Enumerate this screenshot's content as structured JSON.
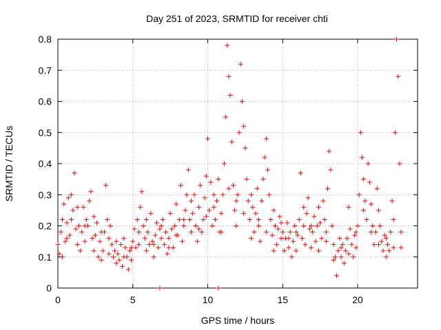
{
  "chart_data": {
    "type": "scatter",
    "title": "Day 251 of 2023, SRMTID for receiver chti",
    "xlabel": "GPS time / hours",
    "ylabel": "SRMTID / TECUs",
    "xlim": [
      0,
      24
    ],
    "ylim": [
      0,
      0.8
    ],
    "grid": true,
    "marker": "+",
    "x_ticks": [
      0,
      5,
      10,
      15,
      20
    ],
    "x_tick_labels": [
      "0",
      "5",
      "10",
      "15",
      "20"
    ],
    "y_ticks": [
      0,
      0.1,
      0.2,
      0.3,
      0.4,
      0.5,
      0.6,
      0.7,
      0.8
    ],
    "y_tick_labels": [
      "0",
      "0.1",
      "0.2",
      "0.3",
      "0.4",
      "0.5",
      "0.6",
      "0.7",
      "0.8"
    ],
    "series": [
      {
        "name": "SRMTID",
        "color": "#ff0000",
        "points": [
          [
            0.0,
            0.14
          ],
          [
            0.1,
            0.11
          ],
          [
            0.2,
            0.18
          ],
          [
            0.3,
            0.22
          ],
          [
            0.4,
            0.27
          ],
          [
            0.5,
            0.15
          ],
          [
            0.6,
            0.21
          ],
          [
            0.7,
            0.29
          ],
          [
            0.8,
            0.17
          ],
          [
            0.9,
            0.3
          ],
          [
            1.0,
            0.25
          ],
          [
            1.1,
            0.37
          ],
          [
            1.2,
            0.19
          ],
          [
            1.3,
            0.14
          ],
          [
            1.4,
            0.2
          ],
          [
            1.5,
            0.12
          ],
          [
            1.6,
            0.18
          ],
          [
            1.7,
            0.26
          ],
          [
            1.8,
            0.15
          ],
          [
            1.9,
            0.22
          ],
          [
            2.0,
            0.2
          ],
          [
            2.1,
            0.28
          ],
          [
            2.2,
            0.31
          ],
          [
            2.3,
            0.16
          ],
          [
            2.4,
            0.12
          ],
          [
            2.5,
            0.17
          ],
          [
            2.6,
            0.21
          ],
          [
            2.7,
            0.1
          ],
          [
            2.8,
            0.15
          ],
          [
            2.9,
            0.09
          ],
          [
            3.0,
            0.12
          ],
          [
            3.1,
            0.18
          ],
          [
            3.2,
            0.33
          ],
          [
            3.3,
            0.22
          ],
          [
            3.4,
            0.16
          ],
          [
            3.5,
            0.2
          ],
          [
            3.6,
            0.14
          ],
          [
            3.7,
            0.1
          ],
          [
            3.8,
            0.12
          ],
          [
            3.9,
            0.15
          ],
          [
            4.0,
            0.11
          ],
          [
            4.1,
            0.09
          ],
          [
            4.2,
            0.14
          ],
          [
            4.3,
            0.07
          ],
          [
            4.4,
            0.1
          ],
          [
            4.5,
            0.13
          ],
          [
            4.6,
            0.1
          ],
          [
            4.7,
            0.06
          ],
          [
            4.8,
            0.12
          ],
          [
            4.9,
            0.09
          ],
          [
            5.0,
            0.15
          ],
          [
            5.1,
            0.19
          ],
          [
            5.2,
            0.13
          ],
          [
            5.3,
            0.22
          ],
          [
            5.4,
            0.14
          ],
          [
            5.5,
            0.26
          ],
          [
            5.6,
            0.31
          ],
          [
            5.7,
            0.2
          ],
          [
            5.8,
            0.16
          ],
          [
            5.9,
            0.12
          ],
          [
            6.0,
            0.18
          ],
          [
            6.1,
            0.14
          ],
          [
            6.2,
            0.24
          ],
          [
            6.3,
            0.15
          ],
          [
            6.4,
            0.1
          ],
          [
            6.5,
            0.17
          ],
          [
            6.6,
            0.21
          ],
          [
            6.7,
            0.13
          ],
          [
            6.8,
            0.19
          ],
          [
            6.9,
            0.16
          ],
          [
            7.0,
            0.22
          ],
          [
            7.1,
            0.14
          ],
          [
            7.2,
            0.18
          ],
          [
            7.3,
            0.11
          ],
          [
            7.4,
            0.16
          ],
          [
            7.5,
            0.24
          ],
          [
            7.6,
            0.19
          ],
          [
            7.7,
            0.13
          ],
          [
            7.8,
            0.2
          ],
          [
            7.9,
            0.27
          ],
          [
            8.0,
            0.17
          ],
          [
            8.1,
            0.22
          ],
          [
            8.2,
            0.33
          ],
          [
            8.3,
            0.15
          ],
          [
            8.4,
            0.2
          ],
          [
            8.5,
            0.25
          ],
          [
            8.6,
            0.3
          ],
          [
            8.7,
            0.38
          ],
          [
            8.8,
            0.22
          ],
          [
            8.9,
            0.18
          ],
          [
            9.0,
            0.24
          ],
          [
            9.1,
            0.3
          ],
          [
            9.2,
            0.2
          ],
          [
            9.3,
            0.15
          ],
          [
            9.4,
            0.26
          ],
          [
            9.5,
            0.33
          ],
          [
            9.6,
            0.18
          ],
          [
            9.7,
            0.22
          ],
          [
            9.8,
            0.29
          ],
          [
            9.9,
            0.36
          ],
          [
            10.0,
            0.48
          ],
          [
            10.1,
            0.25
          ],
          [
            10.2,
            0.34
          ],
          [
            10.3,
            0.2
          ],
          [
            10.4,
            0.3
          ],
          [
            10.5,
            0.22
          ],
          [
            10.6,
            0.28
          ],
          [
            10.7,
            0.35
          ],
          [
            10.8,
            0.18
          ],
          [
            10.9,
            0.24
          ],
          [
            11.0,
            0.3
          ],
          [
            11.1,
            0.4
          ],
          [
            11.2,
            0.55
          ],
          [
            11.3,
            0.78
          ],
          [
            11.4,
            0.68
          ],
          [
            11.5,
            0.62
          ],
          [
            11.6,
            0.47
          ],
          [
            11.7,
            0.33
          ],
          [
            11.8,
            0.25
          ],
          [
            11.9,
            0.2
          ],
          [
            12.0,
            0.3
          ],
          [
            12.1,
            0.5
          ],
          [
            12.2,
            0.72
          ],
          [
            12.3,
            0.6
          ],
          [
            12.4,
            0.52
          ],
          [
            12.5,
            0.45
          ],
          [
            12.6,
            0.35
          ],
          [
            12.7,
            0.28
          ],
          [
            12.8,
            0.22
          ],
          [
            12.9,
            0.3
          ],
          [
            13.0,
            0.26
          ],
          [
            13.1,
            0.18
          ],
          [
            13.2,
            0.24
          ],
          [
            13.3,
            0.32
          ],
          [
            13.4,
            0.2
          ],
          [
            13.5,
            0.15
          ],
          [
            13.6,
            0.28
          ],
          [
            13.7,
            0.35
          ],
          [
            13.8,
            0.42
          ],
          [
            13.9,
            0.48
          ],
          [
            14.0,
            0.38
          ],
          [
            14.1,
            0.3
          ],
          [
            14.2,
            0.22
          ],
          [
            14.3,
            0.17
          ],
          [
            14.4,
            0.25
          ],
          [
            14.5,
            0.2
          ],
          [
            14.6,
            0.14
          ],
          [
            14.7,
            0.19
          ],
          [
            14.8,
            0.23
          ],
          [
            14.9,
            0.16
          ],
          [
            15.0,
            0.18
          ],
          [
            15.1,
            0.12
          ],
          [
            15.2,
            0.16
          ],
          [
            15.3,
            0.21
          ],
          [
            15.4,
            0.13
          ],
          [
            15.5,
            0.18
          ],
          [
            15.6,
            0.1
          ],
          [
            15.7,
            0.15
          ],
          [
            15.8,
            0.2
          ],
          [
            15.9,
            0.12
          ],
          [
            16.0,
            0.17
          ],
          [
            16.1,
            0.22
          ],
          [
            16.2,
            0.37
          ],
          [
            16.3,
            0.16
          ],
          [
            16.4,
            0.2
          ],
          [
            16.5,
            0.14
          ],
          [
            16.6,
            0.24
          ],
          [
            16.7,
            0.29
          ],
          [
            16.8,
            0.19
          ],
          [
            16.9,
            0.13
          ],
          [
            17.0,
            0.18
          ],
          [
            17.1,
            0.23
          ],
          [
            17.2,
            0.15
          ],
          [
            17.3,
            0.2
          ],
          [
            17.4,
            0.26
          ],
          [
            17.5,
            0.21
          ],
          [
            17.6,
            0.16
          ],
          [
            17.7,
            0.28
          ],
          [
            17.8,
            0.22
          ],
          [
            17.9,
            0.18
          ],
          [
            18.0,
            0.32
          ],
          [
            18.1,
            0.44
          ],
          [
            18.2,
            0.38
          ],
          [
            18.3,
            0.2
          ],
          [
            18.4,
            0.14
          ],
          [
            18.5,
            0.1
          ],
          [
            18.6,
            0.04
          ],
          [
            18.7,
            0.12
          ],
          [
            18.8,
            0.16
          ],
          [
            18.9,
            0.1
          ],
          [
            19.0,
            0.14
          ],
          [
            19.1,
            0.08
          ],
          [
            19.2,
            0.12
          ],
          [
            19.3,
            0.16
          ],
          [
            19.4,
            0.26
          ],
          [
            19.5,
            0.19
          ],
          [
            19.6,
            0.14
          ],
          [
            19.7,
            0.1
          ],
          [
            19.8,
            0.17
          ],
          [
            19.9,
            0.13
          ],
          [
            20.0,
            0.2
          ],
          [
            20.1,
            0.3
          ],
          [
            20.2,
            0.5
          ],
          [
            20.3,
            0.42
          ],
          [
            20.4,
            0.35
          ],
          [
            20.5,
            0.28
          ],
          [
            20.6,
            0.22
          ],
          [
            20.7,
            0.4
          ],
          [
            20.8,
            0.34
          ],
          [
            20.9,
            0.27
          ],
          [
            21.0,
            0.2
          ],
          [
            21.1,
            0.14
          ],
          [
            21.2,
            0.18
          ],
          [
            21.3,
            0.32
          ],
          [
            21.4,
            0.25
          ],
          [
            21.5,
            0.2
          ],
          [
            21.6,
            0.15
          ],
          [
            21.7,
            0.12
          ],
          [
            21.8,
            0.17
          ],
          [
            21.9,
            0.1
          ],
          [
            22.0,
            0.14
          ],
          [
            22.1,
            0.12
          ],
          [
            22.2,
            0.18
          ],
          [
            22.3,
            0.28
          ],
          [
            22.4,
            0.22
          ],
          [
            22.5,
            0.5
          ],
          [
            22.6,
            0.8
          ],
          [
            22.7,
            0.68
          ],
          [
            22.8,
            0.4
          ],
          [
            22.9,
            0.13
          ],
          [
            0.3,
            0.1
          ],
          [
            0.6,
            0.16
          ],
          [
            0.9,
            0.22
          ],
          [
            1.3,
            0.26
          ],
          [
            1.8,
            0.2
          ],
          [
            2.4,
            0.23
          ],
          [
            2.9,
            0.18
          ],
          [
            3.4,
            0.11
          ],
          [
            3.9,
            0.08
          ],
          [
            4.4,
            0.16
          ],
          [
            4.9,
            0.13
          ],
          [
            5.4,
            0.18
          ],
          [
            5.9,
            0.22
          ],
          [
            6.4,
            0.14
          ],
          [
            6.9,
            0.2
          ],
          [
            7.4,
            0.13
          ],
          [
            7.9,
            0.17
          ],
          [
            8.4,
            0.22
          ],
          [
            8.9,
            0.28
          ],
          [
            9.4,
            0.19
          ],
          [
            9.9,
            0.23
          ],
          [
            10.4,
            0.26
          ],
          [
            10.9,
            0.18
          ],
          [
            11.4,
            0.32
          ],
          [
            11.9,
            0.28
          ],
          [
            12.4,
            0.24
          ],
          [
            12.9,
            0.16
          ],
          [
            13.4,
            0.22
          ],
          [
            13.9,
            0.18
          ],
          [
            14.4,
            0.12
          ],
          [
            14.9,
            0.21
          ],
          [
            15.4,
            0.16
          ],
          [
            15.9,
            0.18
          ],
          [
            16.4,
            0.26
          ],
          [
            16.9,
            0.2
          ],
          [
            17.4,
            0.12
          ],
          [
            17.9,
            0.15
          ],
          [
            18.4,
            0.09
          ],
          [
            18.9,
            0.13
          ],
          [
            19.4,
            0.11
          ],
          [
            19.9,
            0.18
          ],
          [
            20.4,
            0.25
          ],
          [
            20.9,
            0.18
          ],
          [
            21.4,
            0.14
          ],
          [
            21.9,
            0.16
          ],
          [
            22.4,
            0.13
          ],
          [
            22.9,
            0.18
          ],
          [
            6.8,
            0.0
          ],
          [
            10.7,
            0.0
          ]
        ]
      }
    ]
  }
}
